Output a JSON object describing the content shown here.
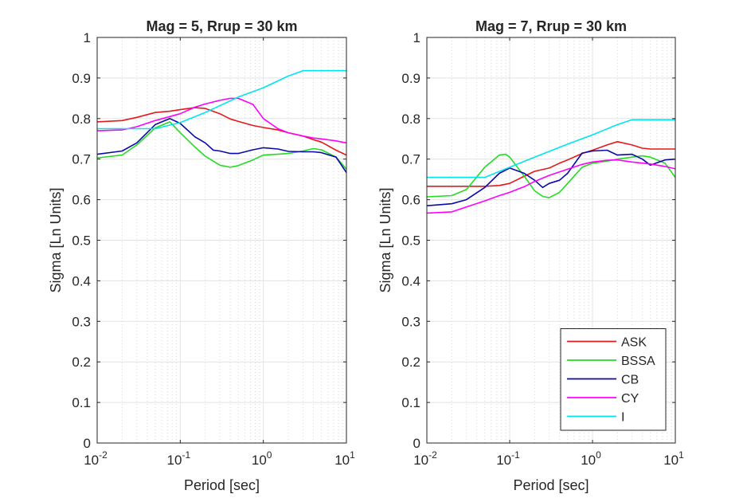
{
  "chart_data": [
    {
      "type": "line",
      "title": "Mag = 5, Rrup = 30 km",
      "xlabel": "Period [sec]",
      "ylabel": "Sigma [Ln Units]",
      "xscale": "log",
      "xlim": [
        0.01,
        10
      ],
      "ylim": [
        0,
        1
      ],
      "yticks": [
        "0",
        "0.1",
        "0.2",
        "0.3",
        "0.4",
        "0.5",
        "0.6",
        "0.7",
        "0.8",
        "0.9",
        "1"
      ],
      "xticks": [
        {
          "base": "10",
          "exp": "-2"
        },
        {
          "base": "10",
          "exp": "-1"
        },
        {
          "base": "10",
          "exp": "0"
        },
        {
          "base": "10",
          "exp": "1"
        }
      ],
      "grid": true,
      "series": [
        {
          "name": "ASK",
          "color": "#e31a1c",
          "x": [
            0.01,
            0.02,
            0.03,
            0.05,
            0.075,
            0.1,
            0.15,
            0.2,
            0.3,
            0.4,
            0.5,
            0.75,
            1,
            1.5,
            2,
            3,
            4,
            5,
            7.5,
            10
          ],
          "y": [
            0.792,
            0.795,
            0.803,
            0.815,
            0.818,
            0.822,
            0.827,
            0.825,
            0.812,
            0.799,
            0.793,
            0.783,
            0.778,
            0.772,
            0.765,
            0.757,
            0.748,
            0.742,
            0.722,
            0.71
          ]
        },
        {
          "name": "BSSA",
          "color": "#22dd22",
          "x": [
            0.01,
            0.02,
            0.03,
            0.05,
            0.075,
            0.1,
            0.15,
            0.2,
            0.3,
            0.4,
            0.5,
            0.75,
            1,
            1.5,
            2,
            3,
            4,
            5,
            7.5,
            10
          ],
          "y": [
            0.703,
            0.71,
            0.735,
            0.777,
            0.792,
            0.765,
            0.73,
            0.707,
            0.685,
            0.68,
            0.684,
            0.698,
            0.71,
            0.712,
            0.714,
            0.72,
            0.726,
            0.723,
            0.705,
            0.675
          ]
        },
        {
          "name": "CB",
          "color": "#0a0aaa",
          "x": [
            0.01,
            0.02,
            0.03,
            0.05,
            0.075,
            0.1,
            0.15,
            0.2,
            0.25,
            0.3,
            0.4,
            0.5,
            0.75,
            1,
            1.5,
            2,
            3,
            4,
            5,
            7.5,
            10
          ],
          "y": [
            0.712,
            0.72,
            0.74,
            0.785,
            0.8,
            0.788,
            0.755,
            0.74,
            0.722,
            0.72,
            0.714,
            0.714,
            0.723,
            0.728,
            0.725,
            0.719,
            0.718,
            0.718,
            0.716,
            0.705,
            0.667
          ]
        },
        {
          "name": "CY",
          "color": "#ff00ff",
          "x": [
            0.01,
            0.02,
            0.03,
            0.05,
            0.075,
            0.1,
            0.15,
            0.2,
            0.3,
            0.4,
            0.5,
            0.75,
            1,
            1.5,
            2,
            3,
            4,
            5,
            7.5,
            10
          ],
          "y": [
            0.77,
            0.772,
            0.78,
            0.795,
            0.805,
            0.812,
            0.828,
            0.836,
            0.845,
            0.85,
            0.85,
            0.835,
            0.8,
            0.775,
            0.765,
            0.757,
            0.752,
            0.75,
            0.745,
            0.74
          ]
        },
        {
          "name": "I",
          "color": "#00e5ee",
          "x": [
            0.01,
            0.02,
            0.05,
            0.1,
            0.2,
            0.5,
            1,
            2,
            3,
            5,
            10
          ],
          "y": [
            0.775,
            0.775,
            0.775,
            0.79,
            0.815,
            0.853,
            0.876,
            0.905,
            0.918,
            0.918,
            0.918
          ]
        }
      ]
    },
    {
      "type": "line",
      "title": "Mag = 7, Rrup = 30 km",
      "xlabel": "Period [sec]",
      "ylabel": "Sigma [Ln Units]",
      "xscale": "log",
      "xlim": [
        0.01,
        10
      ],
      "ylim": [
        0,
        1
      ],
      "yticks": [
        "0",
        "0.1",
        "0.2",
        "0.3",
        "0.4",
        "0.5",
        "0.6",
        "0.7",
        "0.8",
        "0.9",
        "1"
      ],
      "xticks": [
        {
          "base": "10",
          "exp": "-2"
        },
        {
          "base": "10",
          "exp": "-1"
        },
        {
          "base": "10",
          "exp": "0"
        },
        {
          "base": "10",
          "exp": "1"
        }
      ],
      "grid": true,
      "legend": {
        "placement": "bottom-right",
        "entries": [
          "ASK",
          "BSSA",
          "CB",
          "CY",
          "I"
        ]
      },
      "series": [
        {
          "name": "ASK",
          "color": "#e31a1c",
          "x": [
            0.01,
            0.02,
            0.03,
            0.05,
            0.075,
            0.1,
            0.15,
            0.2,
            0.3,
            0.4,
            0.5,
            0.75,
            1,
            1.5,
            2,
            3,
            4,
            5,
            7.5,
            10
          ],
          "y": [
            0.633,
            0.633,
            0.633,
            0.633,
            0.635,
            0.64,
            0.658,
            0.67,
            0.678,
            0.69,
            0.698,
            0.714,
            0.722,
            0.735,
            0.743,
            0.735,
            0.727,
            0.725,
            0.725,
            0.725
          ]
        },
        {
          "name": "BSSA",
          "color": "#22dd22",
          "x": [
            0.01,
            0.02,
            0.03,
            0.05,
            0.075,
            0.09,
            0.1,
            0.15,
            0.2,
            0.25,
            0.3,
            0.4,
            0.5,
            0.75,
            1,
            1.5,
            2,
            3,
            4,
            5,
            7.5,
            10
          ],
          "y": [
            0.607,
            0.61,
            0.625,
            0.68,
            0.71,
            0.712,
            0.705,
            0.658,
            0.622,
            0.608,
            0.605,
            0.618,
            0.64,
            0.68,
            0.69,
            0.695,
            0.7,
            0.705,
            0.708,
            0.705,
            0.69,
            0.655
          ]
        },
        {
          "name": "CB",
          "color": "#0a0aaa",
          "x": [
            0.01,
            0.02,
            0.03,
            0.05,
            0.075,
            0.1,
            0.15,
            0.2,
            0.25,
            0.3,
            0.4,
            0.5,
            0.75,
            1,
            1.5,
            2,
            3,
            4,
            5,
            7.5,
            10
          ],
          "y": [
            0.585,
            0.59,
            0.6,
            0.63,
            0.665,
            0.678,
            0.665,
            0.648,
            0.63,
            0.64,
            0.648,
            0.665,
            0.715,
            0.72,
            0.722,
            0.71,
            0.712,
            0.7,
            0.685,
            0.698,
            0.7
          ]
        },
        {
          "name": "CY",
          "color": "#ff00ff",
          "x": [
            0.01,
            0.02,
            0.03,
            0.05,
            0.075,
            0.1,
            0.15,
            0.2,
            0.3,
            0.5,
            0.75,
            1,
            1.5,
            2,
            3,
            5,
            7.5,
            10
          ],
          "y": [
            0.567,
            0.57,
            0.582,
            0.597,
            0.61,
            0.618,
            0.632,
            0.645,
            0.66,
            0.675,
            0.687,
            0.693,
            0.697,
            0.698,
            0.693,
            0.688,
            0.682,
            0.676
          ]
        },
        {
          "name": "I",
          "color": "#00e5ee",
          "x": [
            0.01,
            0.02,
            0.05,
            0.1,
            0.2,
            0.5,
            1,
            2,
            3,
            5,
            10
          ],
          "y": [
            0.655,
            0.655,
            0.655,
            0.68,
            0.705,
            0.737,
            0.76,
            0.785,
            0.797,
            0.797,
            0.797
          ]
        }
      ]
    }
  ]
}
